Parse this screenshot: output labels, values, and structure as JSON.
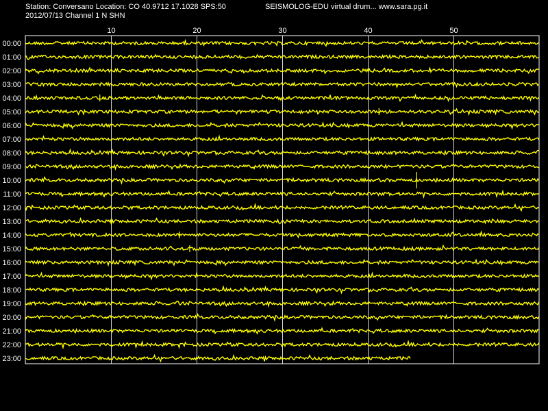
{
  "header": {
    "station_line": "Station: Conversano Location: CO 40.9712 17.1028 SPS:50",
    "software_line": "SEISMOLOG-EDU virtual drum... www.sara.pg.it",
    "date_line": "2012/07/13  Channel 1 N SHN"
  },
  "colors": {
    "background": "#000000",
    "trace": "#ffff00",
    "grid": "#ffffff",
    "text": "#ffffff"
  },
  "chart_data": {
    "type": "line",
    "title": "",
    "xlabel": "",
    "ylabel": "",
    "x_ticks": [
      10,
      20,
      30,
      40,
      50
    ],
    "xlim": [
      0,
      60
    ],
    "grid": "vertical lines at minute ticks",
    "row_labels": [
      "00:00",
      "01:00",
      "02:00",
      "03:00",
      "04:00",
      "05:00",
      "06:00",
      "07:00",
      "08:00",
      "09:00",
      "10:00",
      "11:00",
      "12:00",
      "13:00",
      "14:00",
      "15:00",
      "16:00",
      "17:00",
      "18:00",
      "19:00",
      "20:00",
      "21:00",
      "22:00",
      "23:00"
    ],
    "trace_end_minutes": [
      60,
      60,
      60,
      60,
      60,
      60,
      60,
      60,
      60,
      60,
      60,
      60,
      60,
      60,
      60,
      60,
      60,
      60,
      60,
      60,
      60,
      60,
      60,
      45
    ],
    "noticeable_spikes": [
      {
        "row": "04:00",
        "minute": 8.7
      },
      {
        "row": "05:00",
        "minute": 41.3
      },
      {
        "row": "10:00",
        "minute": 45.7
      },
      {
        "row": "14:00",
        "minute": 18.0
      },
      {
        "row": "15:00",
        "minute": 19.2
      }
    ]
  }
}
